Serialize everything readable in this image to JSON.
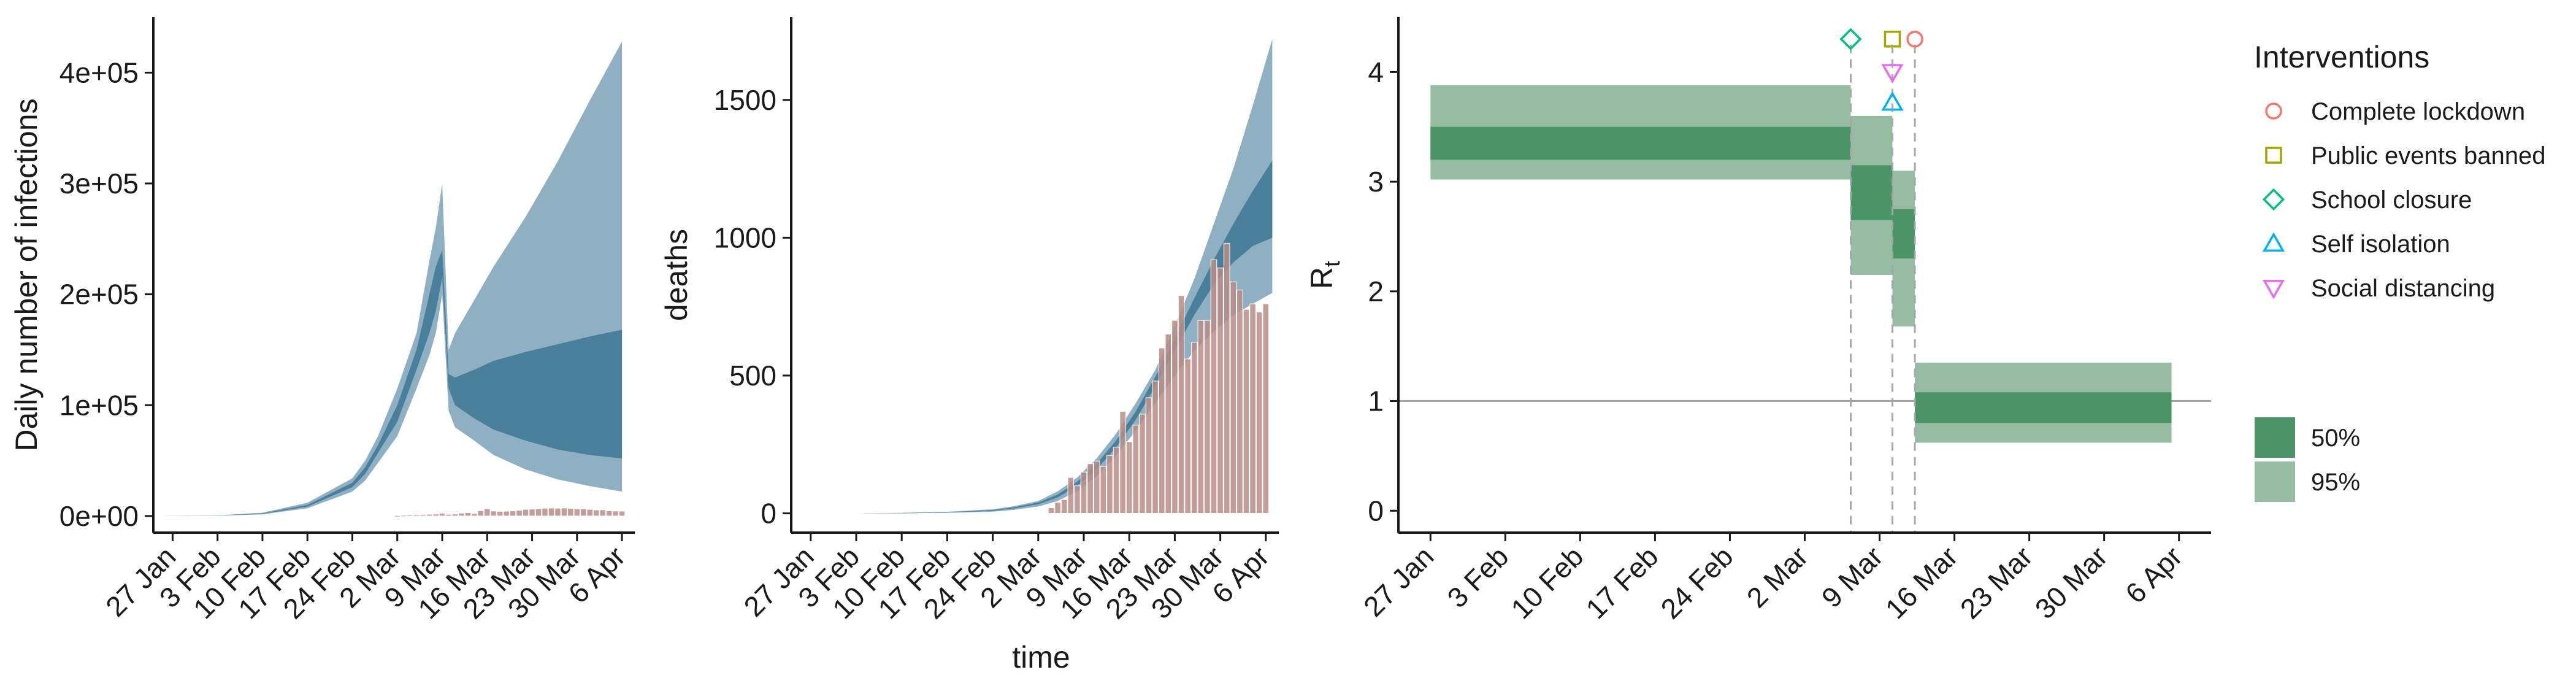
{
  "colors": {
    "band95": "#8fb0c3",
    "band50": "#4a7f9c",
    "bar": "#b98d86",
    "barStroke": "#ffffff",
    "rt95": "#96bda2",
    "rt50": "#4a9468",
    "refline": "#a6a6a6",
    "dashed": "#a6a6a6",
    "axis": "#1a1a1a"
  },
  "chart_data": [
    {
      "type": "area",
      "panel": "infections",
      "ylabel": "Daily number of infections",
      "xlabel": "",
      "ylim": [
        -15000,
        450000
      ],
      "yticks": [
        0,
        100000,
        200000,
        300000,
        400000
      ],
      "ytick_labels": [
        "0e+00",
        "1e+05",
        "2e+05",
        "3e+05",
        "4e+05"
      ],
      "xlim": [
        -3,
        72
      ],
      "xticks": [
        0,
        7,
        14,
        21,
        28,
        35,
        42,
        49,
        56,
        63,
        70
      ],
      "xtick_labels": [
        "27 Jan",
        "3 Feb",
        "10 Feb",
        "17 Feb",
        "24 Feb",
        "2 Mar",
        "9 Mar",
        "16 Mar",
        "23 Mar",
        "30 Mar",
        "6 Apr"
      ],
      "band95": {
        "x": [
          -2,
          7,
          14,
          21,
          28,
          30,
          32,
          35,
          38,
          40,
          41,
          42,
          43,
          44,
          47,
          50,
          55,
          60,
          65,
          70
        ],
        "lower": [
          0,
          300,
          1500,
          7000,
          22000,
          32000,
          48000,
          72000,
          115000,
          145000,
          165000,
          200000,
          95000,
          80000,
          68000,
          55000,
          42000,
          33000,
          27000,
          22000
        ],
        "upper": [
          0,
          600,
          3000,
          12000,
          34000,
          50000,
          72000,
          115000,
          165000,
          230000,
          260000,
          300000,
          150000,
          165000,
          195000,
          225000,
          270000,
          320000,
          375000,
          428000
        ]
      },
      "band50": {
        "x": [
          -2,
          7,
          14,
          21,
          28,
          30,
          32,
          35,
          38,
          40,
          41,
          42,
          43,
          44,
          47,
          50,
          55,
          60,
          65,
          70
        ],
        "lower": [
          0,
          380,
          1900,
          8500,
          26000,
          38000,
          57000,
          85000,
          132000,
          165000,
          185000,
          215000,
          115000,
          100000,
          88000,
          78000,
          68000,
          60000,
          55000,
          52000
        ],
        "upper": [
          0,
          480,
          2400,
          10000,
          30000,
          44000,
          64000,
          100000,
          150000,
          200000,
          225000,
          240000,
          128000,
          125000,
          132000,
          140000,
          148000,
          155000,
          162000,
          168000
        ]
      },
      "bars": {
        "x": [
          35,
          36,
          37,
          38,
          39,
          40,
          41,
          42,
          43,
          44,
          45,
          46,
          47,
          48,
          49,
          50,
          51,
          52,
          53,
          54,
          55,
          56,
          57,
          58,
          59,
          60,
          61,
          62,
          63,
          64,
          65,
          66,
          67,
          68,
          69,
          70
        ],
        "values": [
          400,
          600,
          900,
          1200,
          1300,
          1600,
          1800,
          2500,
          1500,
          1800,
          2600,
          3000,
          2200,
          4800,
          6500,
          4500,
          4200,
          4300,
          4600,
          5200,
          6000,
          6200,
          6500,
          7000,
          7200,
          7000,
          7200,
          6900,
          6300,
          6500,
          6000,
          5500,
          5600,
          4800,
          4500,
          4400
        ]
      }
    },
    {
      "type": "bar",
      "panel": "deaths",
      "ylabel": "deaths",
      "xlabel": "time",
      "ylim": [
        -70,
        1800
      ],
      "yticks": [
        0,
        500,
        1000,
        1500
      ],
      "ytick_labels": [
        "0",
        "500",
        "1000",
        "1500"
      ],
      "xlim": [
        -3,
        72
      ],
      "xticks": [
        0,
        7,
        14,
        21,
        28,
        35,
        42,
        49,
        56,
        63,
        70
      ],
      "xtick_labels": [
        "27 Jan",
        "3 Feb",
        "10 Feb",
        "17 Feb",
        "24 Feb",
        "2 Mar",
        "9 Mar",
        "16 Mar",
        "23 Mar",
        "30 Mar",
        "6 Apr"
      ],
      "band95": {
        "x": [
          7,
          14,
          21,
          28,
          31,
          35,
          38,
          41,
          44,
          47,
          50,
          53,
          56,
          59,
          62,
          65,
          68,
          71
        ],
        "lower": [
          0,
          0,
          2,
          6,
          12,
          25,
          45,
          80,
          135,
          210,
          300,
          400,
          500,
          590,
          660,
          720,
          760,
          800
        ],
        "upper": [
          0,
          2,
          6,
          15,
          25,
          45,
          80,
          130,
          200,
          290,
          400,
          520,
          680,
          850,
          1050,
          1250,
          1480,
          1720
        ]
      },
      "band50": {
        "x": [
          7,
          14,
          21,
          28,
          31,
          35,
          38,
          41,
          44,
          47,
          50,
          53,
          56,
          59,
          62,
          65,
          68,
          71
        ],
        "lower": [
          0,
          0,
          3,
          9,
          17,
          33,
          58,
          100,
          160,
          240,
          340,
          460,
          590,
          720,
          830,
          910,
          970,
          1000
        ],
        "upper": [
          0,
          1,
          4,
          12,
          21,
          39,
          68,
          115,
          180,
          265,
          370,
          495,
          635,
          780,
          920,
          1050,
          1170,
          1280
        ]
      },
      "bars": {
        "x": [
          37,
          38,
          39,
          40,
          41,
          42,
          43,
          44,
          45,
          46,
          47,
          48,
          49,
          50,
          51,
          52,
          53,
          54,
          55,
          56,
          57,
          58,
          59,
          60,
          61,
          62,
          63,
          64,
          65,
          66,
          67,
          68,
          69,
          70
        ],
        "values": [
          20,
          40,
          50,
          130,
          100,
          150,
          180,
          190,
          170,
          210,
          240,
          370,
          260,
          320,
          360,
          420,
          480,
          600,
          650,
          700,
          790,
          560,
          620,
          700,
          700,
          920,
          890,
          980,
          840,
          810,
          740,
          760,
          730,
          760
        ]
      }
    },
    {
      "type": "bar",
      "panel": "Rt",
      "ylabel": "R",
      "ylabel_subscript": "t",
      "xlabel": "",
      "ylim": [
        -0.2,
        4.5
      ],
      "yticks": [
        0,
        1,
        2,
        3,
        4
      ],
      "ytick_labels": [
        "0",
        "1",
        "2",
        "3",
        "4"
      ],
      "xlim": [
        -3,
        73
      ],
      "xticks": [
        0,
        7,
        14,
        21,
        28,
        35,
        42,
        49,
        56,
        63,
        70
      ],
      "xtick_labels": [
        "27 Jan",
        "3 Feb",
        "10 Feb",
        "17 Feb",
        "24 Feb",
        "2 Mar",
        "9 Mar",
        "16 Mar",
        "23 Mar",
        "30 Mar",
        "6 Apr"
      ],
      "reference_line": 1,
      "segments": [
        {
          "x0": 0,
          "x1": 39.3,
          "lo95": 3.02,
          "hi95": 3.88,
          "lo50": 3.2,
          "hi50": 3.5
        },
        {
          "x0": 39.3,
          "x1": 43.2,
          "lo95": 2.15,
          "hi95": 3.6,
          "lo50": 2.65,
          "hi50": 3.15
        },
        {
          "x0": 43.2,
          "x1": 45.3,
          "lo95": 1.68,
          "hi95": 3.1,
          "lo50": 2.3,
          "hi50": 2.75
        },
        {
          "x0": 45.3,
          "x1": 69.3,
          "lo95": 0.62,
          "hi95": 1.35,
          "lo50": 0.8,
          "hi50": 1.08
        }
      ],
      "intervention_dates": [
        39.3,
        43.2,
        45.3
      ],
      "interventions": [
        {
          "name": "Complete lockdown",
          "x": 45.3,
          "y": 4.3,
          "shape": "circle",
          "color": "#f8766d"
        },
        {
          "name": "Public events banned",
          "x": 43.2,
          "y": 4.3,
          "shape": "square",
          "color": "#a3a500"
        },
        {
          "name": "School closure",
          "x": 39.3,
          "y": 4.3,
          "shape": "diamond",
          "color": "#00bf7d"
        },
        {
          "name": "Self isolation",
          "x": 43.2,
          "y": 3.72,
          "shape": "triangle-up",
          "color": "#00b0f6"
        },
        {
          "name": "Social distancing",
          "x": 43.2,
          "y": 4.0,
          "shape": "triangle-down",
          "color": "#e76bf3"
        }
      ]
    }
  ],
  "legend": {
    "title": "Interventions",
    "items": [
      {
        "label": "Complete lockdown",
        "shape": "circle",
        "color": "#f8766d"
      },
      {
        "label": "Public events banned",
        "shape": "square",
        "color": "#a3a500"
      },
      {
        "label": "School closure",
        "shape": "diamond",
        "color": "#00bf7d"
      },
      {
        "label": "Self isolation",
        "shape": "triangle-up",
        "color": "#00b0f6"
      },
      {
        "label": "Social distancing",
        "shape": "triangle-down",
        "color": "#e76bf3"
      }
    ],
    "band_items": [
      {
        "label": "50%"
      },
      {
        "label": "95%"
      }
    ]
  }
}
